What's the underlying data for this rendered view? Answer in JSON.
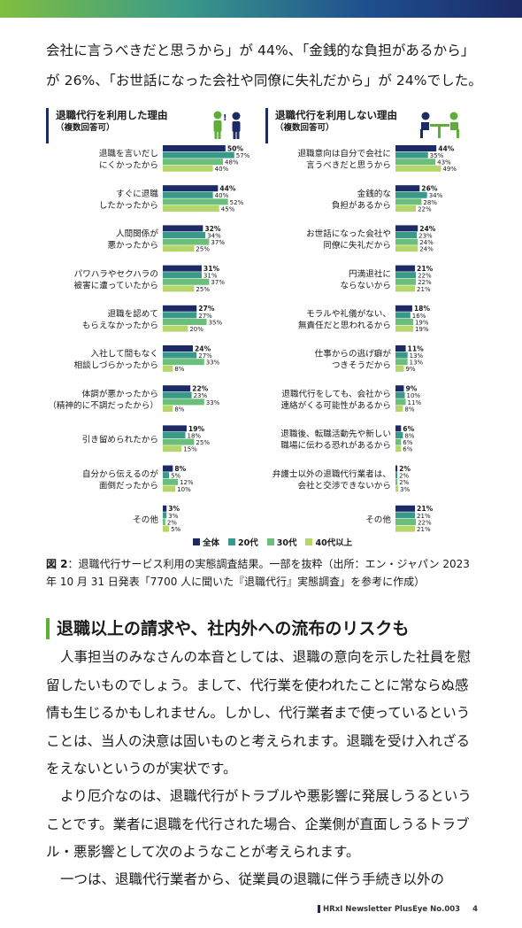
{
  "intro_text": "会社に言うべきだと思うから」が 44%、「金銭的な負担があるから」が 26%、「お世話になった会社や同僚に失礼だから」が 24%でした。",
  "colors": {
    "all": "#1c2a66",
    "twenties": "#3a9a8a",
    "thirties": "#6cbf7a",
    "forties_plus": "#b5d66a",
    "accent_green": "#5fae3a"
  },
  "legend": [
    "全体",
    "20代",
    "30代",
    "40代以上"
  ],
  "left_panel": {
    "title": "退職代行を利用した理由",
    "subtitle": "（複数回答可）",
    "icon": "person-standing-icon"
  },
  "right_panel": {
    "title": "退職代行を利用しない理由",
    "subtitle": "（複数回答可）",
    "icon": "meeting-people-icon"
  },
  "chart_data": [
    {
      "type": "bar",
      "title": "退職代行を利用した理由",
      "subtitle": "（複数回答可）",
      "orientation": "horizontal",
      "categories": [
        [
          "退職を言いだし",
          "にくかったから"
        ],
        [
          "すぐに退職",
          "したかったから"
        ],
        [
          "人間関係が",
          "悪かったから"
        ],
        [
          "パワハラやセクハラの",
          "被害に遭っていたから"
        ],
        [
          "退職を認めて",
          "もらえなかったから"
        ],
        [
          "入社して間もなく",
          "相談しづらかったから"
        ],
        [
          "体調が悪かったから",
          "（精神的に不調だったから）"
        ],
        [
          "引き留められたから"
        ],
        [
          "自分から伝えるのが",
          "面倒だったから"
        ],
        [
          "その他"
        ]
      ],
      "series": [
        {
          "name": "全体",
          "values": [
            50,
            44,
            32,
            31,
            27,
            24,
            22,
            19,
            8,
            3
          ]
        },
        {
          "name": "20代",
          "values": [
            57,
            40,
            34,
            31,
            27,
            27,
            23,
            18,
            5,
            3
          ]
        },
        {
          "name": "30代",
          "values": [
            48,
            52,
            37,
            37,
            35,
            33,
            33,
            25,
            12,
            2
          ]
        },
        {
          "name": "40代以上",
          "values": [
            40,
            45,
            25,
            25,
            20,
            8,
            8,
            15,
            10,
            5
          ]
        }
      ],
      "unit": "%",
      "legend_position": "bottom"
    },
    {
      "type": "bar",
      "title": "退職代行を利用しない理由",
      "subtitle": "（複数回答可）",
      "orientation": "horizontal",
      "categories": [
        [
          "退職意向は自分で会社に",
          "言うべきだと思うから"
        ],
        [
          "金銭的な",
          "負担があるから"
        ],
        [
          "お世話になった会社や",
          "同僚に失礼だから"
        ],
        [
          "円満退社に",
          "ならないから"
        ],
        [
          "モラルや礼儀がない、",
          "無責任だと思われるから"
        ],
        [
          "仕事からの逃げ癖が",
          "つきそうだから"
        ],
        [
          "退職代行をしても、会社から",
          "連絡がくる可能性があるから"
        ],
        [
          "退職後、転職活動先や新しい",
          "職場に伝わる恐れがあるから"
        ],
        [
          "弁護士以外の退職代行業者は、",
          "会社と交渉できないから"
        ],
        [
          "その他"
        ]
      ],
      "series": [
        {
          "name": "全体",
          "values": [
            44,
            26,
            24,
            21,
            18,
            11,
            9,
            6,
            2,
            21
          ]
        },
        {
          "name": "20代",
          "values": [
            35,
            34,
            23,
            22,
            16,
            13,
            10,
            8,
            2,
            21
          ]
        },
        {
          "name": "30代",
          "values": [
            43,
            28,
            24,
            22,
            19,
            13,
            11,
            6,
            2,
            22
          ]
        },
        {
          "name": "40代以上",
          "values": [
            49,
            22,
            24,
            21,
            19,
            9,
            8,
            6,
            3,
            21
          ]
        }
      ],
      "unit": "%",
      "legend_position": "bottom"
    }
  ],
  "caption": {
    "label": "図 2",
    "text": "：退職代行サービス利用の実態調査結果。一部を抜粋（出所：エン・ジャパン 2023 年 10 月 31 日発表「7700 人に聞いた『退職代行』実態調査」を参考に作成）"
  },
  "section_heading": "退職以上の請求や、社内外への流布のリスクも",
  "paragraphs": [
    "人事担当のみなさんの本音としては、退職の意向を示した社員を慰留したいものでしょう。まして、代行業を使われたことに常ならぬ感情も生じるかもしれません。しかし、代行業者まで使っているということは、当人の決意は固いものと考えられます。退職を受け入れざるをえないというのが実状です。",
    "より厄介なのは、退職代行がトラブルや悪影響に発展しうるということです。業者に退職を代行された場合、企業側が直面しうるトラブル・悪影響として次のようなことが考えられます。",
    "一つは、退職代行業者から、従業員の退職に伴う手続き以外の"
  ],
  "footer": {
    "publication": "HRxI Newsletter PlusEye  No.003",
    "page": "4"
  }
}
